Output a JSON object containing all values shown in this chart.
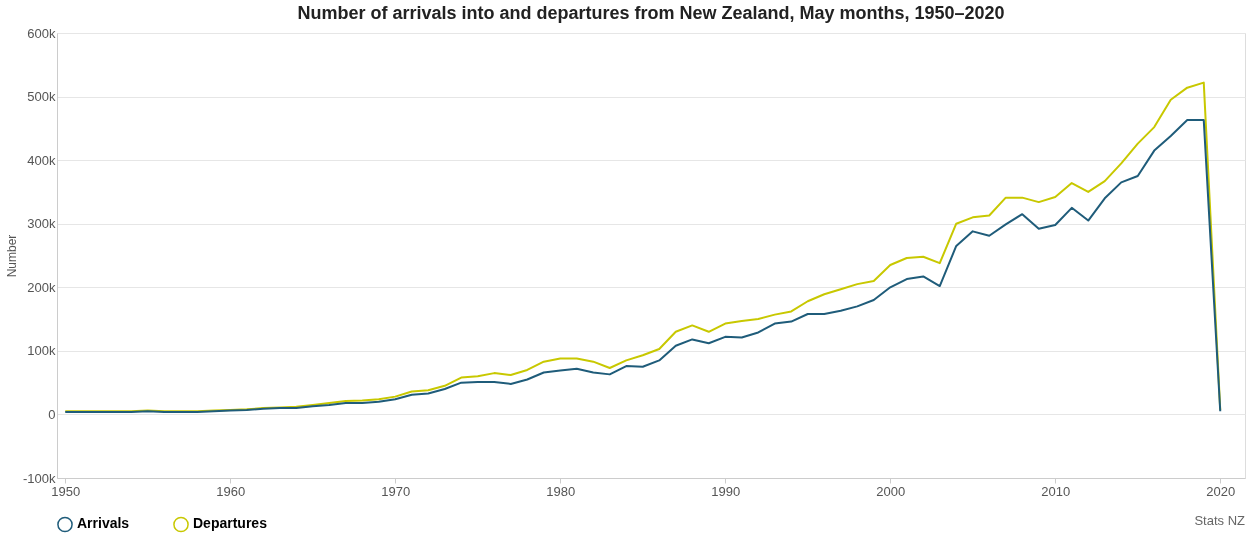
{
  "chart_data": {
    "type": "line",
    "title": "Number of arrivals into and departures from New Zealand, May months, 1950–2020",
    "ylabel": "Number",
    "x": [
      1950,
      1951,
      1952,
      1953,
      1954,
      1955,
      1956,
      1957,
      1958,
      1959,
      1960,
      1961,
      1962,
      1963,
      1964,
      1965,
      1966,
      1967,
      1968,
      1969,
      1970,
      1971,
      1972,
      1973,
      1974,
      1975,
      1976,
      1977,
      1978,
      1979,
      1980,
      1981,
      1982,
      1983,
      1984,
      1985,
      1986,
      1987,
      1988,
      1989,
      1990,
      1991,
      1992,
      1993,
      1994,
      1995,
      1996,
      1997,
      1998,
      1999,
      2000,
      2001,
      2002,
      2003,
      2004,
      2005,
      2006,
      2007,
      2008,
      2009,
      2010,
      2011,
      2012,
      2013,
      2014,
      2015,
      2016,
      2017,
      2018,
      2019,
      2020
    ],
    "series": [
      {
        "name": "Arrivals",
        "color": "#1f5c7a",
        "values": [
          4000,
          4000,
          4000,
          4000,
          4000,
          5000,
          4000,
          4000,
          4000,
          5000,
          6000,
          7000,
          9000,
          10000,
          10000,
          13000,
          15000,
          18000,
          18000,
          20000,
          24000,
          31000,
          33000,
          40000,
          50000,
          51000,
          51000,
          48000,
          55000,
          66000,
          69000,
          72000,
          66000,
          63000,
          76000,
          75000,
          85000,
          108000,
          118000,
          112000,
          122000,
          121000,
          129000,
          143000,
          146000,
          158000,
          158000,
          163000,
          170000,
          180000,
          200000,
          213000,
          217000,
          202000,
          265000,
          288000,
          281000,
          299000,
          315000,
          292000,
          298000,
          325000,
          305000,
          340000,
          365000,
          375000,
          415000,
          438000,
          463000,
          463000,
          5000
        ]
      },
      {
        "name": "Departures",
        "color": "#c8c800",
        "values": [
          5000,
          5000,
          5000,
          5000,
          5000,
          6000,
          5000,
          5000,
          5000,
          6000,
          7000,
          8000,
          10000,
          11000,
          12000,
          15000,
          18000,
          21000,
          22000,
          24000,
          28000,
          36000,
          38000,
          45000,
          58000,
          60000,
          65000,
          62000,
          70000,
          83000,
          88000,
          88000,
          83000,
          73000,
          85000,
          93000,
          103000,
          130000,
          140000,
          130000,
          143000,
          147000,
          150000,
          157000,
          162000,
          178000,
          189000,
          197000,
          205000,
          210000,
          235000,
          246000,
          248000,
          238000,
          300000,
          310000,
          313000,
          341000,
          341000,
          334000,
          342000,
          364000,
          350000,
          367000,
          395000,
          426000,
          452000,
          495000,
          514000,
          522000,
          7000
        ]
      }
    ],
    "xlim": [
      1949.5,
      2021.5
    ],
    "xticks": [
      1950,
      1960,
      1970,
      1980,
      1990,
      2000,
      2010,
      2020
    ],
    "ylim": [
      -100000,
      600000
    ],
    "yticks": [
      {
        "value": -100000,
        "label": "-100k"
      },
      {
        "value": 0,
        "label": "0"
      },
      {
        "value": 100000,
        "label": "100k"
      },
      {
        "value": 200000,
        "label": "200k"
      },
      {
        "value": 300000,
        "label": "300k"
      },
      {
        "value": 400000,
        "label": "400k"
      },
      {
        "value": 500000,
        "label": "500k"
      },
      {
        "value": 600000,
        "label": "600k"
      }
    ],
    "grid": "y",
    "legend": "bottom",
    "marker": "none",
    "line_style": "solid",
    "annotations": [
      "Stats NZ"
    ]
  }
}
